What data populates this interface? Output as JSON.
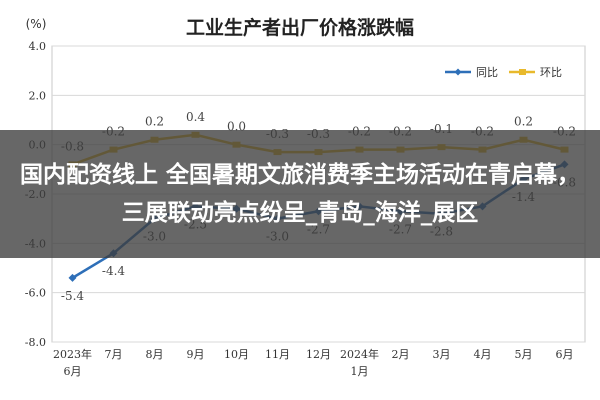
{
  "chart_data": {
    "type": "line",
    "title": "工业生产者出厂价格涨跌幅",
    "ylabel": "(%)",
    "ylim": [
      -8.0,
      4.0
    ],
    "yticks": [
      "4.0",
      "2.0",
      "0.0",
      "-2.0",
      "-4.0",
      "-6.0",
      "-8.0"
    ],
    "categories": [
      [
        "2023年",
        "6月"
      ],
      [
        "7月"
      ],
      [
        "8月"
      ],
      [
        "9月"
      ],
      [
        "10月"
      ],
      [
        "11月"
      ],
      [
        "12月"
      ],
      [
        "2024年",
        "1月"
      ],
      [
        "2月"
      ],
      [
        "3月"
      ],
      [
        "4月"
      ],
      [
        "5月"
      ],
      [
        "6月"
      ]
    ],
    "legend_position": "top-right",
    "series": [
      {
        "name": "同比",
        "color": "#2e6fb8",
        "values": [
          -5.4,
          -4.4,
          -3.0,
          -2.5,
          -2.6,
          -3.0,
          -2.7,
          -2.5,
          -2.7,
          -2.8,
          -2.5,
          -1.4,
          -0.8
        ],
        "labels": [
          "-5.4",
          "-4.4",
          "-3.0",
          "-2.5",
          "",
          "-3.0",
          "-2.7",
          "",
          "-2.7",
          "-2.8",
          "",
          "-1.4",
          "-0.8"
        ]
      },
      {
        "name": "环比",
        "color": "#e8b92c",
        "values": [
          -0.8,
          -0.2,
          0.2,
          0.4,
          0.0,
          -0.3,
          -0.3,
          -0.2,
          -0.2,
          -0.1,
          -0.2,
          0.2,
          -0.2
        ],
        "labels": [
          "-0.8",
          "-0.2",
          "0.2",
          "0.4",
          "0.0",
          "-0.3",
          "-0.3",
          "-0.2",
          "-0.2",
          "-0.1",
          "-0.2",
          "0.2",
          "-0.2"
        ]
      }
    ]
  },
  "overlay": {
    "headline": "国内配资线上 全国暑期文旅消费季主场活动在青启幕，三展联动亮点纷呈_青岛_海洋_展区"
  }
}
